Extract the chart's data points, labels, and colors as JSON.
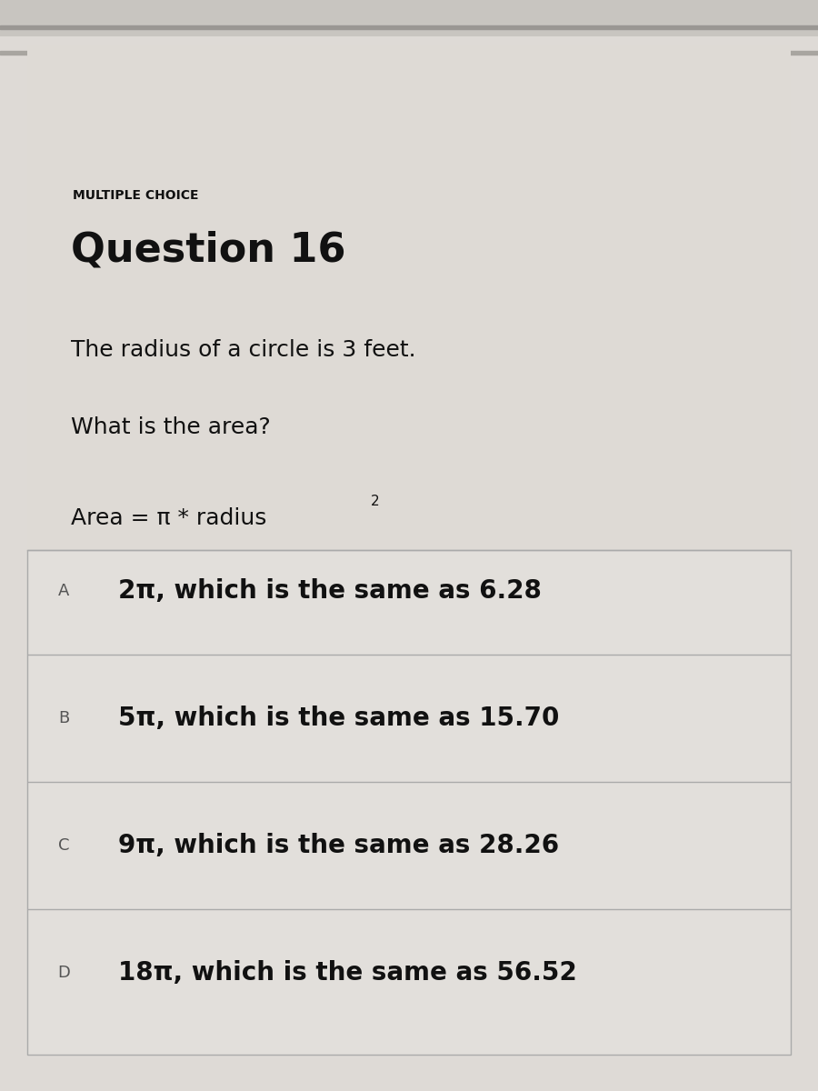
{
  "bg_color": "#c8c5c0",
  "content_bg": "#dedad6",
  "choices_bg": "#e8e5e1",
  "label_multiple_choice": "MULTIPLE CHOICE",
  "label_question": "Question 16",
  "text_problem1": "The radius of a circle is 3 feet.",
  "text_problem2": "What is the area?",
  "formula_text": "Area = π * radius",
  "choices": [
    {
      "letter": "A",
      "text": "2π, which is the same as 6.28"
    },
    {
      "letter": "B",
      "text": "5π, which is the same as 15.70"
    },
    {
      "letter": "C",
      "text": "9π, which is the same as 28.26"
    },
    {
      "letter": "D",
      "text": "18π, which is the same as 56.52"
    }
  ],
  "font_color": "#111111",
  "letter_color": "#555555",
  "divider_color": "#aaaaaa",
  "top_band_color": "#b8b5b0",
  "top_band2_color": "#c5c2bd"
}
